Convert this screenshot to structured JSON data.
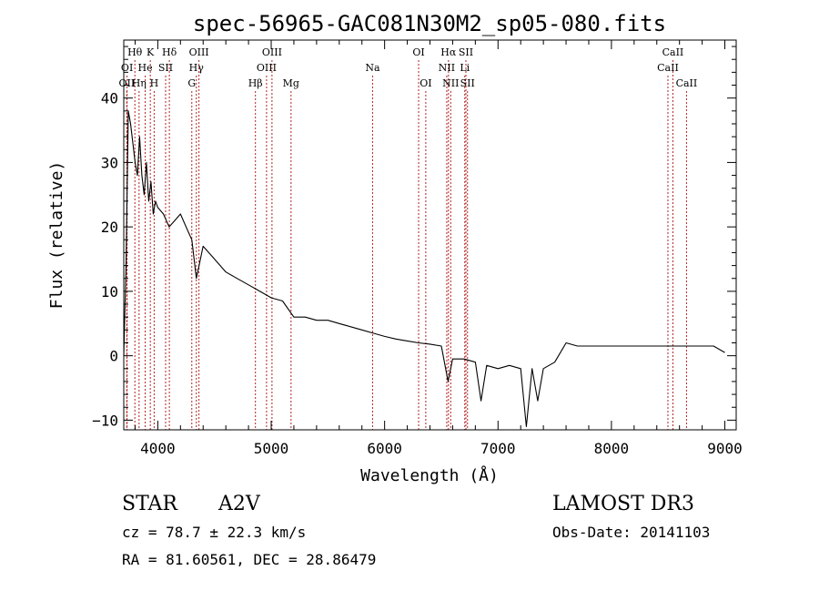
{
  "chart_data": {
    "type": "line",
    "title": "spec-56965-GAC081N30M2_sp05-080.fits",
    "xlabel": "Wavelength (Å)",
    "ylabel": "Flux (relative)",
    "xlim": [
      3700,
      9100
    ],
    "ylim": [
      -11.5,
      49
    ],
    "xticks": [
      4000,
      5000,
      6000,
      7000,
      8000,
      9000
    ],
    "yticks": [
      -10,
      0,
      10,
      20,
      30,
      40
    ],
    "xtick_labels": [
      "4000",
      "5000",
      "6000",
      "7000",
      "8000",
      "9000"
    ],
    "ytick_labels": [
      "−10",
      "0",
      "10",
      "20",
      "30",
      "40"
    ],
    "line_color": "#000000",
    "marker_color": "#b22222",
    "series": [
      {
        "name": "flux",
        "x": [
          3700,
          3720,
          3740,
          3760,
          3780,
          3800,
          3820,
          3840,
          3860,
          3880,
          3900,
          3920,
          3940,
          3960,
          3980,
          4000,
          4050,
          4100,
          4150,
          4200,
          4250,
          4300,
          4340,
          4400,
          4500,
          4600,
          4700,
          4800,
          4900,
          5000,
          5100,
          5200,
          5300,
          5400,
          5500,
          5600,
          5700,
          5800,
          5900,
          6000,
          6100,
          6200,
          6300,
          6400,
          6500,
          6560,
          6600,
          6700,
          6800,
          6850,
          6900,
          7000,
          7100,
          7200,
          7250,
          7300,
          7350,
          7400,
          7500,
          7600,
          7700,
          7800,
          7900,
          8000,
          8100,
          8200,
          8300,
          8400,
          8500,
          8600,
          8700,
          8800,
          8900,
          9000
        ],
        "y": [
          0,
          14,
          38,
          36,
          33,
          30,
          28,
          34,
          28,
          25,
          30,
          24,
          27,
          22,
          24,
          23,
          22,
          20,
          21,
          22,
          20,
          18,
          12,
          17,
          15,
          13,
          12,
          11,
          10,
          9,
          8.5,
          6,
          6,
          5.5,
          5.5,
          5,
          4.5,
          4,
          3.5,
          3,
          2.6,
          2.3,
          2,
          1.8,
          1.5,
          -4,
          -0.5,
          -0.5,
          -1,
          -7,
          -1.5,
          -2,
          -1.5,
          -2,
          -11,
          -2,
          -7,
          -2,
          -1,
          2,
          1.5,
          1.5,
          1.5,
          1.5,
          1.5,
          1.5,
          1.5,
          1.5,
          1.5,
          1.5,
          1.5,
          1.5,
          1.5,
          0.5
        ]
      }
    ],
    "line_markers": [
      {
        "label": "OII",
        "wavelength": 3727,
        "row": 3
      },
      {
        "label": "OI",
        "wavelength": 3729,
        "row": 2
      },
      {
        "label": "Hθ",
        "wavelength": 3798,
        "row": 1
      },
      {
        "label": "Hη",
        "wavelength": 3835,
        "row": 3
      },
      {
        "label": "He",
        "wavelength": 3889,
        "row": 2
      },
      {
        "label": "K",
        "wavelength": 3934,
        "row": 1
      },
      {
        "label": "H",
        "wavelength": 3968,
        "row": 3
      },
      {
        "label": "SII",
        "wavelength": 4069,
        "row": 2
      },
      {
        "label": "Hδ",
        "wavelength": 4102,
        "row": 1
      },
      {
        "label": "G",
        "wavelength": 4300,
        "row": 3
      },
      {
        "label": "Hγ",
        "wavelength": 4340,
        "row": 2
      },
      {
        "label": "OIII",
        "wavelength": 4363,
        "row": 1
      },
      {
        "label": "Hβ",
        "wavelength": 4861,
        "row": 3
      },
      {
        "label": "OIII",
        "wavelength": 4959,
        "row": 2
      },
      {
        "label": "OIII",
        "wavelength": 5007,
        "row": 1
      },
      {
        "label": "Mg",
        "wavelength": 5175,
        "row": 3
      },
      {
        "label": "Na",
        "wavelength": 5894,
        "row": 2
      },
      {
        "label": "OI",
        "wavelength": 6300,
        "row": 1
      },
      {
        "label": "OI",
        "wavelength": 6363,
        "row": 3
      },
      {
        "label": "NII",
        "wavelength": 6548,
        "row": 2
      },
      {
        "label": "Hα",
        "wavelength": 6563,
        "row": 1
      },
      {
        "label": "NII",
        "wavelength": 6583,
        "row": 3
      },
      {
        "label": "Li",
        "wavelength": 6707,
        "row": 2
      },
      {
        "label": "SII",
        "wavelength": 6717,
        "row": 1
      },
      {
        "label": "SII",
        "wavelength": 6731,
        "row": 3
      },
      {
        "label": "CaII",
        "wavelength": 8498,
        "row": 2
      },
      {
        "label": "CaII",
        "wavelength": 8542,
        "row": 1
      },
      {
        "label": "CaII",
        "wavelength": 8662,
        "row": 3
      }
    ]
  },
  "info": {
    "object_class": "STAR",
    "subclass": "A2V",
    "survey": "LAMOST DR3",
    "redshift": "cz = 78.7 ± 22.3 km/s",
    "obs_date": "Obs-Date: 20141103",
    "coords": "RA =  81.60561, DEC =  28.86479"
  }
}
